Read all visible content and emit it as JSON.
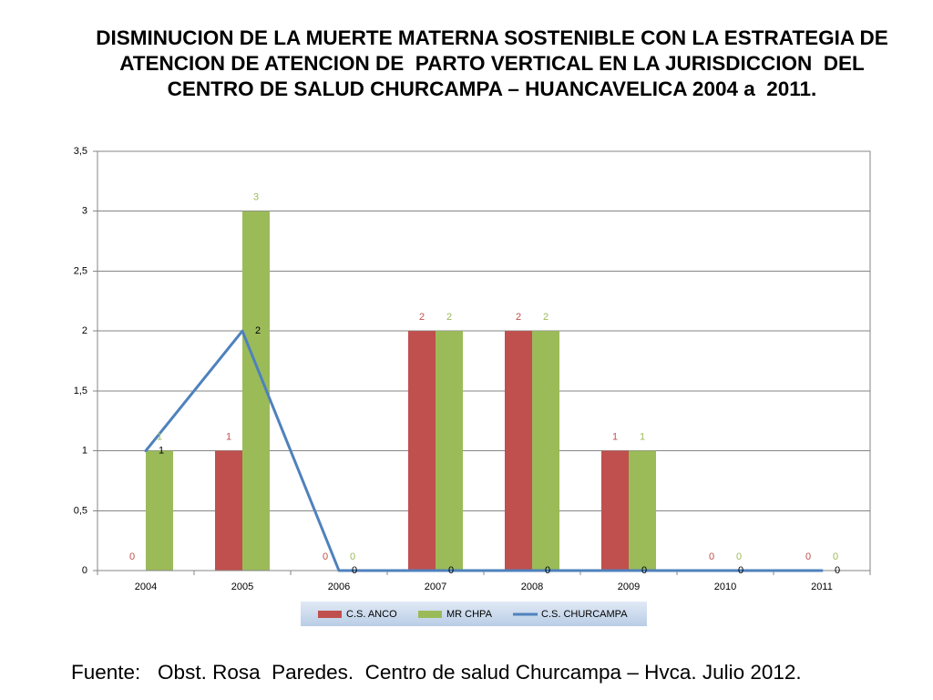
{
  "chart_data": {
    "type": "bar",
    "title": "DISMINUCION DE LA MUERTE MATERNA SOSTENIBLE CON LA ESTRATEGIA DE\nATENCION DE ATENCION DE  PARTO VERTICAL EN LA JURISDICCION  DEL\nCENTRO DE SALUD CHURCAMPA – HUANCAVELICA 2004 a  2011.",
    "categories": [
      "2004",
      "2005",
      "2006",
      "2007",
      "2008",
      "2009",
      "2010",
      "2011"
    ],
    "series": [
      {
        "name": "C.S. ANCO",
        "type": "bar",
        "color": "#C0504D",
        "values": [
          0,
          1,
          0,
          2,
          2,
          1,
          0,
          0
        ]
      },
      {
        "name": "MR CHPA",
        "type": "bar",
        "color": "#9BBB59",
        "values": [
          1,
          3,
          0,
          2,
          2,
          1,
          0,
          0
        ]
      },
      {
        "name": "C.S. CHURCAMPA",
        "type": "line",
        "color": "#4F81BD",
        "values": [
          1,
          2,
          0,
          0,
          0,
          0,
          0,
          0
        ]
      }
    ],
    "ylim": [
      0,
      3.5
    ],
    "yticks": [
      0,
      0.5,
      1,
      1.5,
      2,
      2.5,
      3,
      3.5
    ],
    "ytick_labels": [
      "0",
      "0,5",
      "1",
      "1,5",
      "2",
      "2,5",
      "3",
      "3,5"
    ],
    "xlabel": "",
    "ylabel": "",
    "grid": true,
    "data_labels": true,
    "legend": "bottom"
  },
  "source": "Fuente:   Obst. Rosa  Paredes.  Centro de salud Churcampa – Hvca. Julio 2012."
}
